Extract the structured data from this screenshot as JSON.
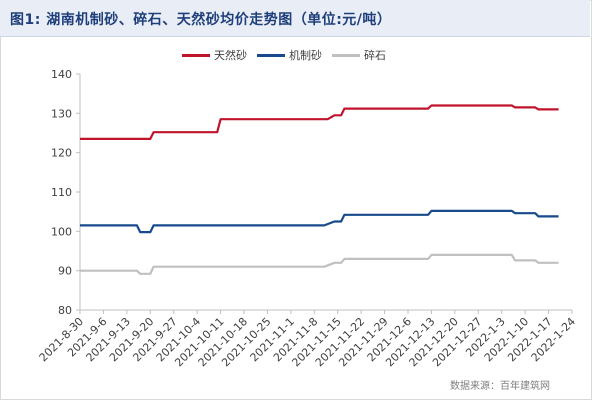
{
  "title": "图1: 湖南机制砂、碎石、天然砂均价走势图（单位:元/吨）",
  "source": "数据来源：百年建筑网",
  "colors": {
    "natural_sand": "#c0142c",
    "machine_sand": "#174a8c",
    "gravel": "#c0c0c0",
    "axis": "#bfbfbf"
  },
  "chart_data": {
    "type": "line",
    "x": [
      "2021-8-30",
      "2021-9-6",
      "2021-9-13",
      "2021-9-20",
      "2021-9-27",
      "2021-10-4",
      "2021-10-11",
      "2021-10-18",
      "2021-10-25",
      "2021-11-1",
      "2021-11-8",
      "2021-11-15",
      "2021-11-22",
      "2021-11-29",
      "2021-12-6",
      "2021-12-13",
      "2021-12-20",
      "2021-12-27",
      "2022-1-3",
      "2022-1-10",
      "2022-1-17",
      "2022-1-24"
    ],
    "x_ticks": [
      "2021-8-30",
      "2021-9-6",
      "2021-9-13",
      "2021-9-20",
      "2021-9-27",
      "2021-10-4",
      "2021-10-11",
      "2021-10-18",
      "2021-10-25",
      "2021-11-1",
      "2021-11-8",
      "2021-11-15",
      "2021-11-22",
      "2021-11-29",
      "2021-12-6",
      "2021-12-13",
      "2021-12-20",
      "2021-12-27",
      "2022-1-3",
      "2022-1-10",
      "2022-1-17",
      "2022-1-24"
    ],
    "series": [
      {
        "name": "天然砂",
        "points": [
          [
            "2021-8-30",
            123.5
          ],
          [
            "2021-9-20",
            123.5
          ],
          [
            "2021-9-21",
            125.2
          ],
          [
            "2021-10-10",
            125.2
          ],
          [
            "2021-10-11",
            128.5
          ],
          [
            "2021-11-12",
            128.5
          ],
          [
            "2021-11-14",
            129.5
          ],
          [
            "2021-11-16",
            129.5
          ],
          [
            "2021-11-17",
            131.2
          ],
          [
            "2021-12-12",
            131.2
          ],
          [
            "2021-12-13",
            132.0
          ],
          [
            "2022-1-6",
            132.0
          ],
          [
            "2022-1-7",
            131.5
          ],
          [
            "2022-1-13",
            131.5
          ],
          [
            "2022-1-14",
            131.0
          ],
          [
            "2022-1-20",
            131.0
          ]
        ]
      },
      {
        "name": "机制砂",
        "points": [
          [
            "2021-8-30",
            101.5
          ],
          [
            "2021-9-16",
            101.5
          ],
          [
            "2021-9-17",
            99.8
          ],
          [
            "2021-9-20",
            99.8
          ],
          [
            "2021-9-21",
            101.5
          ],
          [
            "2021-11-11",
            101.5
          ],
          [
            "2021-11-14",
            102.5
          ],
          [
            "2021-11-16",
            102.5
          ],
          [
            "2021-11-17",
            104.2
          ],
          [
            "2021-12-12",
            104.2
          ],
          [
            "2021-12-13",
            105.2
          ],
          [
            "2022-1-6",
            105.2
          ],
          [
            "2022-1-7",
            104.6
          ],
          [
            "2022-1-13",
            104.6
          ],
          [
            "2022-1-14",
            103.8
          ],
          [
            "2022-1-20",
            103.8
          ]
        ]
      },
      {
        "name": "碎石",
        "points": [
          [
            "2021-8-30",
            90.0
          ],
          [
            "2021-9-16",
            90.0
          ],
          [
            "2021-9-17",
            89.2
          ],
          [
            "2021-9-20",
            89.2
          ],
          [
            "2021-9-21",
            91.0
          ],
          [
            "2021-11-11",
            91.0
          ],
          [
            "2021-11-14",
            92.0
          ],
          [
            "2021-11-16",
            92.0
          ],
          [
            "2021-11-17",
            93.0
          ],
          [
            "2021-12-12",
            93.0
          ],
          [
            "2021-12-13",
            94.0
          ],
          [
            "2022-1-6",
            94.0
          ],
          [
            "2022-1-7",
            92.6
          ],
          [
            "2022-1-13",
            92.6
          ],
          [
            "2022-1-14",
            92.0
          ],
          [
            "2022-1-20",
            92.0
          ]
        ]
      }
    ],
    "y_ticks": [
      80,
      90,
      100,
      110,
      120,
      130,
      140
    ],
    "ylim": [
      80,
      140
    ],
    "xlim": [
      "2021-8-30",
      "2022-1-24"
    ],
    "grid": false,
    "legend": "top-center"
  }
}
